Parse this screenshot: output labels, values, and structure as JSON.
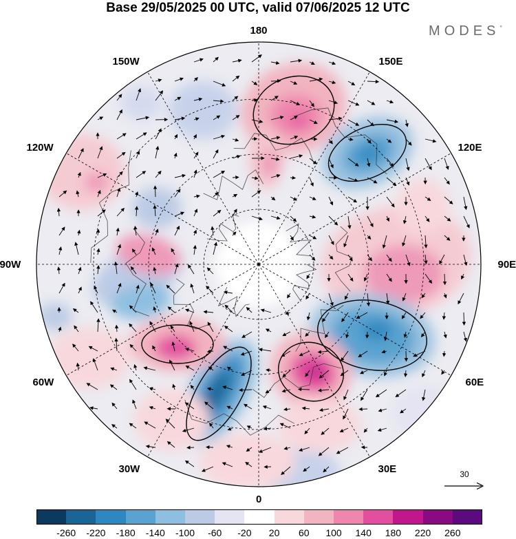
{
  "title": "Base 29/05/2025 00 UTC, valid 07/06/2025 12 UTC",
  "logo": {
    "text": "MODES",
    "mark": "°"
  },
  "longitude_labels": [
    "180",
    "150E",
    "120E",
    "90E",
    "60E",
    "30E",
    "0",
    "30W",
    "60W",
    "90W",
    "120W",
    "150W"
  ],
  "reference_vector": {
    "value": "30"
  },
  "colorbar": {
    "labels": [
      "-260",
      "-220",
      "-180",
      "-140",
      "-100",
      "-60",
      "-20",
      "20",
      "60",
      "100",
      "140",
      "180",
      "220",
      "260"
    ],
    "colors": [
      "#0b3a5e",
      "#1a6496",
      "#2f87bf",
      "#5aa3d0",
      "#8fbfe0",
      "#bccbe5",
      "#e4e4f2",
      "#ffffff",
      "#f8d8dc",
      "#f2b4c0",
      "#ee86ad",
      "#e34f9f",
      "#c0188c",
      "#8a0a82",
      "#5b0b7e"
    ]
  }
}
